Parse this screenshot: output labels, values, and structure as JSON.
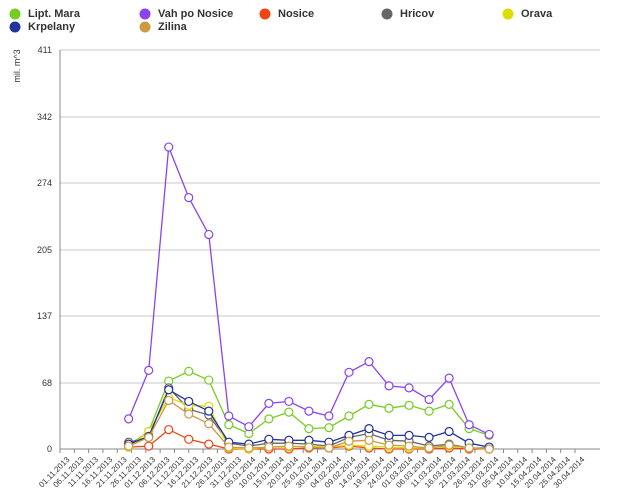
{
  "chart_data": {
    "type": "line",
    "ylabel": "mil. m^3",
    "ylim": [
      0,
      411
    ],
    "yticks": [
      0,
      68,
      137,
      205,
      274,
      342,
      411
    ],
    "grid": true,
    "xticks": [
      "01.11.2013",
      "06.11.2013",
      "11.11.2013",
      "16.11.2013",
      "21.11.2013",
      "26.11.2013",
      "01.12.2013",
      "06.12.2013",
      "11.12.2013",
      "16.12.2013",
      "21.12.2013",
      "26.12.2013",
      "31.12.2013",
      "05.01.2014",
      "10.01.2014",
      "15.01.2014",
      "20.01.2014",
      "25.01.2014",
      "30.01.2014",
      "04.02.2014",
      "09.02.2014",
      "14.02.2014",
      "19.02.2014",
      "24.02.2014",
      "01.03.2014",
      "06.03.2014",
      "11.03.2014",
      "16.03.2014",
      "21.03.2014",
      "26.03.2014",
      "31.03.2014",
      "05.04.2014",
      "10.04.2014",
      "15.04.2014",
      "20.04.2014",
      "25.04.2014",
      "30.04.2014"
    ],
    "x": [
      "25.11.2013",
      "02.12.2013",
      "09.12.2013",
      "16.12.2013",
      "23.12.2013",
      "30.12.2013",
      "06.01.2014",
      "13.01.2014",
      "20.01.2014",
      "27.01.2014",
      "03.02.2014",
      "10.02.2014",
      "17.02.2014",
      "24.02.2014",
      "03.03.2014",
      "10.03.2014",
      "17.03.2014",
      "24.03.2014",
      "31.03.2014"
    ],
    "series": [
      {
        "name": "Lipt. Mara",
        "color": "#77cc22",
        "values": [
          4,
          18,
          70,
          80,
          71,
          25,
          16,
          31,
          38,
          21,
          22,
          34,
          46,
          42,
          45,
          39,
          46,
          21,
          14
        ]
      },
      {
        "name": "Vah po Nosice",
        "color": "#8844ee",
        "values": [
          31,
          81,
          311,
          259,
          221,
          34,
          23,
          47,
          49,
          39,
          34,
          79,
          90,
          65,
          63,
          51,
          73,
          25,
          15
        ]
      },
      {
        "name": "Nosice",
        "color": "#ee4411",
        "values": [
          2,
          3,
          20,
          10,
          5,
          0,
          0,
          0,
          0,
          1,
          1,
          3,
          1,
          0,
          0,
          0,
          1,
          0,
          0
        ]
      },
      {
        "name": "Hricov",
        "color": "#666666",
        "values": [
          7,
          12,
          63,
          41,
          35,
          6,
          3,
          6,
          6,
          5,
          3,
          12,
          16,
          9,
          8,
          3,
          5,
          1,
          1
        ]
      },
      {
        "name": "Orava",
        "color": "#dddd00",
        "values": [
          2,
          18,
          53,
          45,
          44,
          1,
          0,
          2,
          2,
          3,
          2,
          4,
          3,
          2,
          1,
          1,
          3,
          1,
          0
        ]
      },
      {
        "name": "Krpelany",
        "color": "#223399",
        "values": [
          5,
          13,
          61,
          49,
          39,
          7,
          5,
          10,
          9,
          9,
          7,
          14,
          21,
          14,
          14,
          12,
          18,
          6,
          2
        ]
      },
      {
        "name": "Zilina",
        "color": "#cc9944",
        "values": [
          3,
          12,
          50,
          36,
          26,
          2,
          1,
          2,
          3,
          2,
          1,
          8,
          9,
          4,
          3,
          1,
          4,
          1,
          0
        ]
      }
    ]
  }
}
